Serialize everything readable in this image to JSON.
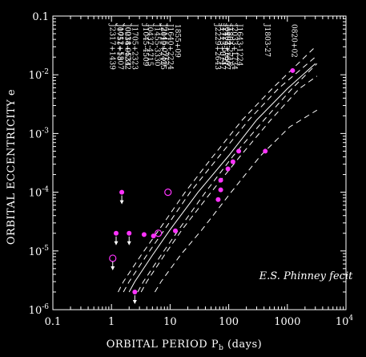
{
  "chart_data": {
    "type": "scatter",
    "xscale": "log",
    "yscale": "log",
    "xlim": [
      0.1,
      10000
    ],
    "ylim": [
      1e-06,
      0.1
    ],
    "xlabel": "ORBITAL PERIOD P",
    "xlabel_sub": "b",
    "xlabel_suffix": " (days)",
    "ylabel": "ORBITAL ECCENTRICITY  e",
    "x_ticks": [
      {
        "value": 0.1,
        "label": "0.1"
      },
      {
        "value": 1,
        "label": "1"
      },
      {
        "value": 10,
        "label": "10"
      },
      {
        "value": 100,
        "label": "100"
      },
      {
        "value": 1000,
        "label": "1000"
      }
    ],
    "x_tick_last": {
      "value": 10000,
      "base": "10",
      "exp": "4"
    },
    "y_ticks": [
      {
        "value": 0.1,
        "label": "0.1"
      },
      {
        "value": 0.01,
        "base": "10",
        "exp": "-2"
      },
      {
        "value": 0.001,
        "base": "10",
        "exp": "-3"
      },
      {
        "value": 0.0001,
        "base": "10",
        "exp": "-4"
      },
      {
        "value": 1e-05,
        "base": "10",
        "exp": "-5"
      },
      {
        "value": 1e-06,
        "base": "10",
        "exp": "-6"
      }
    ],
    "annotation": "E.S. Phinney fecit",
    "pulsar_labels": [
      {
        "x": 1.1,
        "lines": [
          "J2317+1439",
          "J0751+18"
        ]
      },
      {
        "x": 1.5,
        "lines": [
          "J1012+5307",
          "J0218+4232"
        ]
      },
      {
        "x": 2.0,
        "lines": [
          "J0034-0534",
          "J1705+2323"
        ]
      },
      {
        "x": 3.5,
        "lines": [
          "J1045-4509"
        ]
      },
      {
        "x": 5.5,
        "lines": [
          "J0437-4715",
          "J1455-3330",
          "J2145-0750"
        ]
      },
      {
        "x": 8.0,
        "lines": [
          "J2019+2425",
          "J1640+2224"
        ]
      },
      {
        "x": 12.3,
        "lines": [
          "1855+09"
        ]
      },
      {
        "x": 68,
        "lines": [
          "J2229+2643",
          "J2129-5721"
        ]
      },
      {
        "x": 82,
        "lines": [
          "J1713+0747",
          "J1804-2718"
        ]
      },
      {
        "x": 100,
        "lines": [
          "J0407+1607",
          "J2033+1734"
        ]
      },
      {
        "x": 140,
        "lines": [
          "J1643-1224"
        ]
      },
      {
        "x": 420,
        "lines": [
          "J1803-27"
        ]
      },
      {
        "x": 1200,
        "lines": [
          "0820+02"
        ]
      }
    ],
    "series": [
      {
        "marker": "filled-circle",
        "color": "#ff33ff",
        "points": [
          {
            "x": 1.2,
            "y": 2e-05,
            "upper_limit": true
          },
          {
            "x": 1.5,
            "y": 0.0001,
            "upper_limit": true
          },
          {
            "x": 2.0,
            "y": 2e-05,
            "upper_limit": true
          },
          {
            "x": 2.5,
            "y": 2e-06,
            "upper_limit": true
          },
          {
            "x": 3.6,
            "y": 1.9e-05
          },
          {
            "x": 5.2,
            "y": 1.8e-05
          },
          {
            "x": 12.3,
            "y": 2.2e-05
          },
          {
            "x": 66,
            "y": 7.5e-05
          },
          {
            "x": 73,
            "y": 0.00011
          },
          {
            "x": 73,
            "y": 0.00016
          },
          {
            "x": 97,
            "y": 0.00025
          },
          {
            "x": 118,
            "y": 0.00033
          },
          {
            "x": 148,
            "y": 0.0005
          },
          {
            "x": 420,
            "y": 0.0005
          },
          {
            "x": 1230,
            "y": 0.0118
          }
        ]
      },
      {
        "marker": "open-circle",
        "color": "#ff33ff",
        "points": [
          {
            "x": 1.05,
            "y": 7.5e-06,
            "upper_limit": true
          },
          {
            "x": 6.3,
            "y": 2e-05
          },
          {
            "x": 9.2,
            "y": 0.0001
          }
        ]
      }
    ],
    "curves": [
      {
        "style": "solid",
        "x": [
          2.0,
          2.5,
          5,
          10,
          30,
          100,
          300,
          1000,
          3000
        ],
        "y": [
          2e-06,
          3e-06,
          8.5e-06,
          2.3e-05,
          0.0001,
          0.00042,
          0.0017,
          0.0058,
          0.0155
        ]
      },
      {
        "style": "dashed",
        "x": [
          2.8,
          3.5,
          7,
          14,
          40,
          120,
          400,
          1200,
          3200
        ],
        "y": [
          2e-06,
          3e-06,
          8.5e-06,
          2.3e-05,
          0.0001,
          0.00042,
          0.0017,
          0.0058,
          0.0155
        ]
      },
      {
        "style": "dashed",
        "x": [
          1.6,
          2.0,
          4,
          8,
          22,
          70,
          220,
          700,
          2900
        ],
        "y": [
          2e-06,
          3e-06,
          8.5e-06,
          2.3e-05,
          0.0001,
          0.00042,
          0.0017,
          0.0058,
          0.0195
        ]
      },
      {
        "style": "dashed",
        "x": [
          3.2,
          4.0,
          8,
          16,
          50,
          160,
          520,
          1600,
          3200
        ],
        "y": [
          2e-06,
          3e-06,
          8.5e-06,
          2.3e-05,
          0.0001,
          0.00042,
          0.0017,
          0.0058,
          0.0095
        ]
      },
      {
        "style": "dashed",
        "x": [
          1.3,
          1.6,
          3.2,
          6.5,
          18,
          55,
          170,
          550,
          2800
        ],
        "y": [
          2e-06,
          3e-06,
          8.5e-06,
          2.3e-05,
          0.0001,
          0.00042,
          0.0017,
          0.0058,
          0.028
        ]
      },
      {
        "style": "dashed",
        "x": [
          5.5,
          7,
          15,
          35,
          110,
          350,
          1100,
          3200
        ],
        "y": [
          2e-06,
          3e-06,
          8.5e-06,
          2.3e-05,
          0.0001,
          0.00042,
          0.0013,
          0.0025
        ]
      }
    ]
  }
}
